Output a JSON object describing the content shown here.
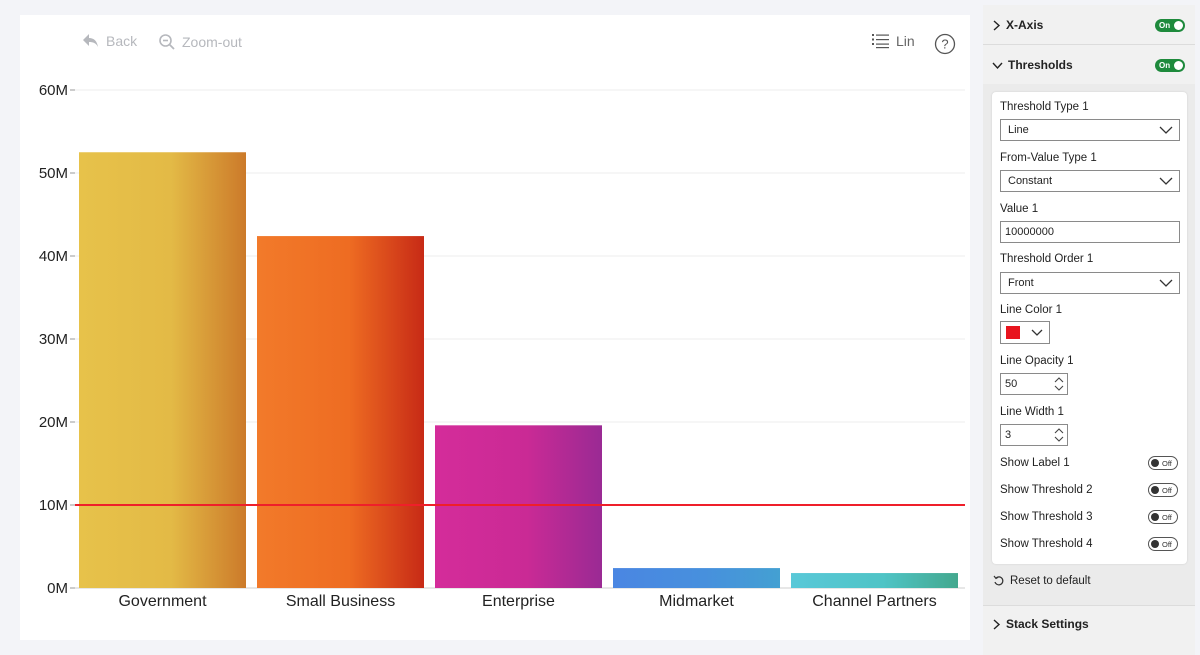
{
  "toolbar": {
    "back_label": "Back",
    "zoom_label": "Zoom-out",
    "scale_label": "Lin",
    "help_label": "?"
  },
  "chart_data": {
    "type": "bar",
    "title": "",
    "xlabel": "",
    "ylabel": "",
    "categories": [
      "Government",
      "Small Business",
      "Enterprise",
      "Midmarket",
      "Channel Partners"
    ],
    "values": [
      52500000,
      42400000,
      19600000,
      2400000,
      1800000
    ],
    "ylim": [
      0,
      60000000
    ],
    "y_ticks": [
      0,
      10000000,
      20000000,
      30000000,
      40000000,
      50000000,
      60000000
    ],
    "y_tick_labels": [
      "0M",
      "10M",
      "20M",
      "30M",
      "40M",
      "50M",
      "60M"
    ],
    "grid": true,
    "bar_colors": [
      [
        "#e7c24a",
        "#e3ba46",
        "#cc7a2a"
      ],
      [
        "#f27a2a",
        "#ee6c22",
        "#c72a16"
      ],
      [
        "#d42c9a",
        "#ca2a95",
        "#9a2a94"
      ],
      [
        "#4a86e2",
        "#4790dd",
        "#44a0d2"
      ],
      [
        "#59c8d8",
        "#4fc4c6",
        "#43a88e"
      ]
    ],
    "threshold": {
      "value": 10000000,
      "color": "#ef1f2a",
      "opacity": 50
    }
  },
  "panel": {
    "xaxis": {
      "title": "X-Axis",
      "toggle": "On"
    },
    "thresholds": {
      "title": "Thresholds",
      "toggle": "On",
      "threshold_type_label": "Threshold Type 1",
      "threshold_type_value": "Line",
      "from_value_type_label": "From-Value Type 1",
      "from_value_type_value": "Constant",
      "value_label": "Value 1",
      "value_value": "10000000",
      "order_label": "Threshold Order 1",
      "order_value": "Front",
      "line_color_label": "Line Color 1",
      "line_color_value": "#e8141e",
      "line_opacity_label": "Line Opacity 1",
      "line_opacity_value": "50",
      "line_width_label": "Line Width 1",
      "line_width_value": "3",
      "show_label_label": "Show Label 1",
      "show_threshold2_label": "Show Threshold 2",
      "show_threshold3_label": "Show Threshold 3",
      "show_threshold4_label": "Show Threshold 4",
      "off_label": "Off",
      "reset_label": "Reset to default"
    },
    "stack": {
      "title": "Stack Settings"
    }
  }
}
